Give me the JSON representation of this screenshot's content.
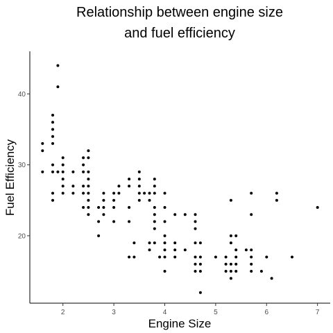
{
  "chart_data": {
    "type": "scatter",
    "title": [
      "Relationship between engine size",
      "and fuel efficiency"
    ],
    "xlabel": "Engine Size",
    "ylabel": "Fuel Efficiency",
    "xlim": [
      1.35,
      7.25
    ],
    "ylim": [
      10.5,
      46
    ],
    "x_ticks": [
      2,
      3,
      4,
      5,
      6,
      7
    ],
    "y_ticks": [
      20,
      30,
      40
    ],
    "grid": false,
    "legend": "none",
    "point_color": "#000000",
    "points": [
      [
        1.6,
        33
      ],
      [
        1.6,
        32
      ],
      [
        1.6,
        29
      ],
      [
        1.8,
        37
      ],
      [
        1.8,
        36
      ],
      [
        1.8,
        35
      ],
      [
        1.8,
        34
      ],
      [
        1.8,
        33
      ],
      [
        1.8,
        30
      ],
      [
        1.8,
        29
      ],
      [
        1.8,
        26
      ],
      [
        1.8,
        25
      ],
      [
        1.9,
        44
      ],
      [
        1.9,
        41
      ],
      [
        1.9,
        29
      ],
      [
        2.0,
        31
      ],
      [
        2.0,
        30
      ],
      [
        2.0,
        29
      ],
      [
        2.0,
        28
      ],
      [
        2.0,
        27
      ],
      [
        2.0,
        26
      ],
      [
        2.2,
        29
      ],
      [
        2.2,
        27
      ],
      [
        2.2,
        26
      ],
      [
        2.4,
        31
      ],
      [
        2.4,
        30
      ],
      [
        2.4,
        29
      ],
      [
        2.4,
        27
      ],
      [
        2.4,
        26
      ],
      [
        2.4,
        24
      ],
      [
        2.5,
        32
      ],
      [
        2.5,
        31
      ],
      [
        2.5,
        29
      ],
      [
        2.5,
        28
      ],
      [
        2.5,
        27
      ],
      [
        2.5,
        26
      ],
      [
        2.5,
        25
      ],
      [
        2.5,
        24
      ],
      [
        2.5,
        23
      ],
      [
        2.7,
        24
      ],
      [
        2.7,
        22
      ],
      [
        2.7,
        20
      ],
      [
        2.8,
        26
      ],
      [
        2.8,
        25
      ],
      [
        2.8,
        24
      ],
      [
        2.8,
        23
      ],
      [
        3.0,
        26
      ],
      [
        3.0,
        25
      ],
      [
        3.0,
        24
      ],
      [
        3.0,
        22
      ],
      [
        3.1,
        27
      ],
      [
        3.1,
        26
      ],
      [
        3.3,
        28
      ],
      [
        3.3,
        27
      ],
      [
        3.3,
        24
      ],
      [
        3.3,
        22
      ],
      [
        3.3,
        17
      ],
      [
        3.4,
        19
      ],
      [
        3.4,
        17
      ],
      [
        3.5,
        29
      ],
      [
        3.5,
        28
      ],
      [
        3.5,
        27
      ],
      [
        3.5,
        26
      ],
      [
        3.5,
        25
      ],
      [
        3.6,
        26
      ],
      [
        3.7,
        26
      ],
      [
        3.7,
        25
      ],
      [
        3.7,
        19
      ],
      [
        3.7,
        18
      ],
      [
        3.8,
        28
      ],
      [
        3.8,
        27
      ],
      [
        3.8,
        26
      ],
      [
        3.8,
        24
      ],
      [
        3.8,
        23
      ],
      [
        3.8,
        22
      ],
      [
        3.8,
        21
      ],
      [
        3.8,
        19
      ],
      [
        3.9,
        17
      ],
      [
        4.0,
        26
      ],
      [
        4.0,
        24
      ],
      [
        4.0,
        22
      ],
      [
        4.0,
        20
      ],
      [
        4.0,
        19
      ],
      [
        4.0,
        18
      ],
      [
        4.0,
        17
      ],
      [
        4.0,
        15
      ],
      [
        4.2,
        23
      ],
      [
        4.2,
        19
      ],
      [
        4.2,
        18
      ],
      [
        4.2,
        17
      ],
      [
        4.4,
        23
      ],
      [
        4.4,
        18
      ],
      [
        4.6,
        23
      ],
      [
        4.6,
        22
      ],
      [
        4.6,
        21
      ],
      [
        4.6,
        19
      ],
      [
        4.6,
        17
      ],
      [
        4.6,
        16
      ],
      [
        4.6,
        15
      ],
      [
        4.7,
        19
      ],
      [
        4.7,
        17
      ],
      [
        4.7,
        16
      ],
      [
        4.7,
        15
      ],
      [
        4.7,
        12
      ],
      [
        5.0,
        17
      ],
      [
        5.2,
        17
      ],
      [
        5.2,
        16
      ],
      [
        5.2,
        15
      ],
      [
        5.3,
        25
      ],
      [
        5.3,
        20
      ],
      [
        5.3,
        19
      ],
      [
        5.3,
        16
      ],
      [
        5.3,
        15
      ],
      [
        5.3,
        14
      ],
      [
        5.4,
        20
      ],
      [
        5.4,
        18
      ],
      [
        5.4,
        17
      ],
      [
        5.4,
        16
      ],
      [
        5.4,
        15
      ],
      [
        5.6,
        18
      ],
      [
        5.7,
        26
      ],
      [
        5.7,
        23
      ],
      [
        5.7,
        18
      ],
      [
        5.7,
        17
      ],
      [
        5.7,
        16
      ],
      [
        5.7,
        15
      ],
      [
        5.9,
        15
      ],
      [
        6.0,
        17
      ],
      [
        6.1,
        14
      ],
      [
        6.2,
        26
      ],
      [
        6.2,
        25
      ],
      [
        6.5,
        17
      ],
      [
        7.0,
        24
      ]
    ]
  }
}
